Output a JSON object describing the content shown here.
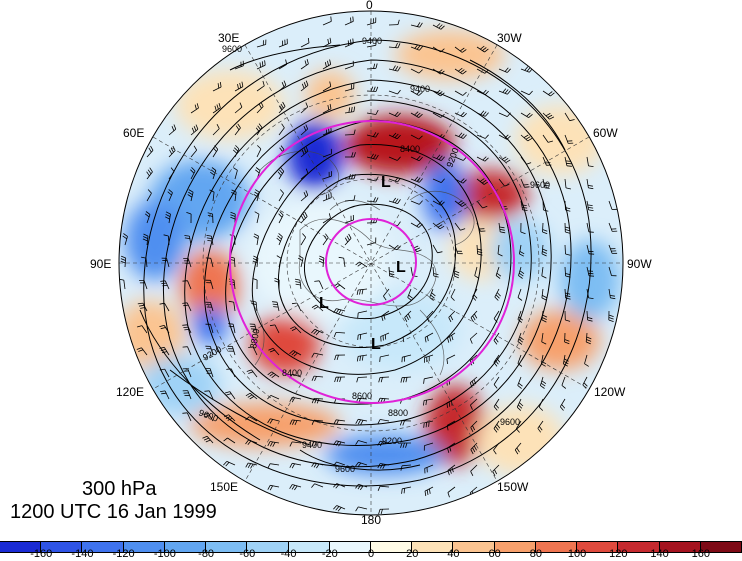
{
  "figure": {
    "level": "300 hPa",
    "time": "1200 UTC 16 Jan 1999"
  },
  "longitude_labels": {
    "north_top": "0",
    "lon_30e": "30E",
    "lon_30w": "30W",
    "lon_60e": "60E",
    "lon_60w": "60W",
    "lon_90e": "90E",
    "lon_90w": "90W",
    "lon_120e": "120E",
    "lon_120w": "120W",
    "lon_150e": "150E",
    "lon_150w": "150W",
    "lon_180": "180"
  },
  "contour_labels": [
    "9400",
    "9600",
    "9200",
    "8400",
    "9400",
    "9600",
    "9600",
    "8800",
    "9200",
    "9400",
    "9600",
    "8600",
    "8400",
    "8800",
    "9200",
    "9600"
  ],
  "pressure_lows": [
    "L",
    "L",
    "L",
    "L"
  ],
  "colorbar": {
    "ticks": [
      "-160",
      "-140",
      "-120",
      "-100",
      "-80",
      "-60",
      "-40",
      "-20",
      "0",
      "20",
      "40",
      "60",
      "80",
      "100",
      "120",
      "140",
      "160"
    ],
    "colors": [
      "#1a2bd4",
      "#2f54e6",
      "#3f73ee",
      "#4f8ff0",
      "#62a6f1",
      "#7dbdf3",
      "#9fd2f6",
      "#c7e8fa",
      "#e9f7fd",
      "#fffbe6",
      "#fde2b8",
      "#fbc491",
      "#f7a06c",
      "#ef7551",
      "#df4a3d",
      "#c62a2f",
      "#a5131f",
      "#7e0a16"
    ]
  },
  "colors": {
    "analysis_circle": "#e022d8",
    "contour": "#000000"
  }
}
